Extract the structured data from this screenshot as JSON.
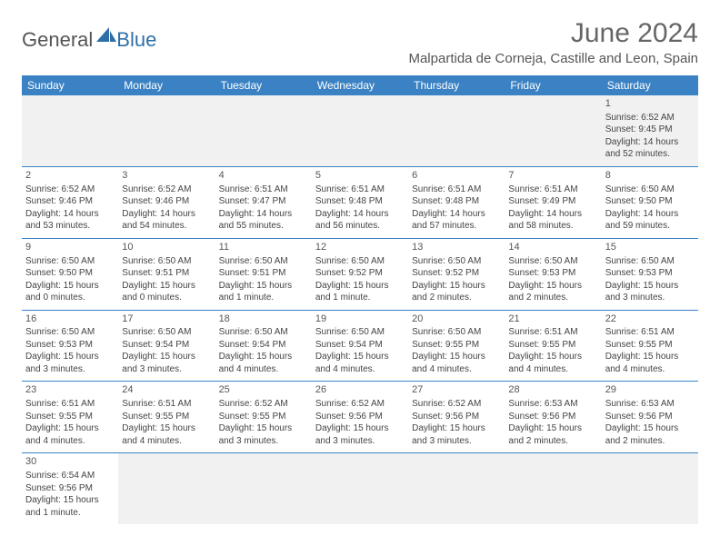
{
  "brand": {
    "part1": "General",
    "part2": "Blue"
  },
  "title": "June 2024",
  "location": "Malpartida de Corneja, Castille and Leon, Spain",
  "colors": {
    "header_bg": "#3b82c4",
    "header_text": "#ffffff",
    "rule": "#3b82c4",
    "text": "#444444",
    "brand_accent": "#2f6fa8"
  },
  "calendar": {
    "type": "table",
    "columns": [
      "Sunday",
      "Monday",
      "Tuesday",
      "Wednesday",
      "Thursday",
      "Friday",
      "Saturday"
    ],
    "weeks": [
      [
        null,
        null,
        null,
        null,
        null,
        null,
        {
          "day": "1",
          "sunrise": "Sunrise: 6:52 AM",
          "sunset": "Sunset: 9:45 PM",
          "daylight": "Daylight: 14 hours and 52 minutes."
        }
      ],
      [
        {
          "day": "2",
          "sunrise": "Sunrise: 6:52 AM",
          "sunset": "Sunset: 9:46 PM",
          "daylight": "Daylight: 14 hours and 53 minutes."
        },
        {
          "day": "3",
          "sunrise": "Sunrise: 6:52 AM",
          "sunset": "Sunset: 9:46 PM",
          "daylight": "Daylight: 14 hours and 54 minutes."
        },
        {
          "day": "4",
          "sunrise": "Sunrise: 6:51 AM",
          "sunset": "Sunset: 9:47 PM",
          "daylight": "Daylight: 14 hours and 55 minutes."
        },
        {
          "day": "5",
          "sunrise": "Sunrise: 6:51 AM",
          "sunset": "Sunset: 9:48 PM",
          "daylight": "Daylight: 14 hours and 56 minutes."
        },
        {
          "day": "6",
          "sunrise": "Sunrise: 6:51 AM",
          "sunset": "Sunset: 9:48 PM",
          "daylight": "Daylight: 14 hours and 57 minutes."
        },
        {
          "day": "7",
          "sunrise": "Sunrise: 6:51 AM",
          "sunset": "Sunset: 9:49 PM",
          "daylight": "Daylight: 14 hours and 58 minutes."
        },
        {
          "day": "8",
          "sunrise": "Sunrise: 6:50 AM",
          "sunset": "Sunset: 9:50 PM",
          "daylight": "Daylight: 14 hours and 59 minutes."
        }
      ],
      [
        {
          "day": "9",
          "sunrise": "Sunrise: 6:50 AM",
          "sunset": "Sunset: 9:50 PM",
          "daylight": "Daylight: 15 hours and 0 minutes."
        },
        {
          "day": "10",
          "sunrise": "Sunrise: 6:50 AM",
          "sunset": "Sunset: 9:51 PM",
          "daylight": "Daylight: 15 hours and 0 minutes."
        },
        {
          "day": "11",
          "sunrise": "Sunrise: 6:50 AM",
          "sunset": "Sunset: 9:51 PM",
          "daylight": "Daylight: 15 hours and 1 minute."
        },
        {
          "day": "12",
          "sunrise": "Sunrise: 6:50 AM",
          "sunset": "Sunset: 9:52 PM",
          "daylight": "Daylight: 15 hours and 1 minute."
        },
        {
          "day": "13",
          "sunrise": "Sunrise: 6:50 AM",
          "sunset": "Sunset: 9:52 PM",
          "daylight": "Daylight: 15 hours and 2 minutes."
        },
        {
          "day": "14",
          "sunrise": "Sunrise: 6:50 AM",
          "sunset": "Sunset: 9:53 PM",
          "daylight": "Daylight: 15 hours and 2 minutes."
        },
        {
          "day": "15",
          "sunrise": "Sunrise: 6:50 AM",
          "sunset": "Sunset: 9:53 PM",
          "daylight": "Daylight: 15 hours and 3 minutes."
        }
      ],
      [
        {
          "day": "16",
          "sunrise": "Sunrise: 6:50 AM",
          "sunset": "Sunset: 9:53 PM",
          "daylight": "Daylight: 15 hours and 3 minutes."
        },
        {
          "day": "17",
          "sunrise": "Sunrise: 6:50 AM",
          "sunset": "Sunset: 9:54 PM",
          "daylight": "Daylight: 15 hours and 3 minutes."
        },
        {
          "day": "18",
          "sunrise": "Sunrise: 6:50 AM",
          "sunset": "Sunset: 9:54 PM",
          "daylight": "Daylight: 15 hours and 4 minutes."
        },
        {
          "day": "19",
          "sunrise": "Sunrise: 6:50 AM",
          "sunset": "Sunset: 9:54 PM",
          "daylight": "Daylight: 15 hours and 4 minutes."
        },
        {
          "day": "20",
          "sunrise": "Sunrise: 6:50 AM",
          "sunset": "Sunset: 9:55 PM",
          "daylight": "Daylight: 15 hours and 4 minutes."
        },
        {
          "day": "21",
          "sunrise": "Sunrise: 6:51 AM",
          "sunset": "Sunset: 9:55 PM",
          "daylight": "Daylight: 15 hours and 4 minutes."
        },
        {
          "day": "22",
          "sunrise": "Sunrise: 6:51 AM",
          "sunset": "Sunset: 9:55 PM",
          "daylight": "Daylight: 15 hours and 4 minutes."
        }
      ],
      [
        {
          "day": "23",
          "sunrise": "Sunrise: 6:51 AM",
          "sunset": "Sunset: 9:55 PM",
          "daylight": "Daylight: 15 hours and 4 minutes."
        },
        {
          "day": "24",
          "sunrise": "Sunrise: 6:51 AM",
          "sunset": "Sunset: 9:55 PM",
          "daylight": "Daylight: 15 hours and 4 minutes."
        },
        {
          "day": "25",
          "sunrise": "Sunrise: 6:52 AM",
          "sunset": "Sunset: 9:55 PM",
          "daylight": "Daylight: 15 hours and 3 minutes."
        },
        {
          "day": "26",
          "sunrise": "Sunrise: 6:52 AM",
          "sunset": "Sunset: 9:56 PM",
          "daylight": "Daylight: 15 hours and 3 minutes."
        },
        {
          "day": "27",
          "sunrise": "Sunrise: 6:52 AM",
          "sunset": "Sunset: 9:56 PM",
          "daylight": "Daylight: 15 hours and 3 minutes."
        },
        {
          "day": "28",
          "sunrise": "Sunrise: 6:53 AM",
          "sunset": "Sunset: 9:56 PM",
          "daylight": "Daylight: 15 hours and 2 minutes."
        },
        {
          "day": "29",
          "sunrise": "Sunrise: 6:53 AM",
          "sunset": "Sunset: 9:56 PM",
          "daylight": "Daylight: 15 hours and 2 minutes."
        }
      ],
      [
        {
          "day": "30",
          "sunrise": "Sunrise: 6:54 AM",
          "sunset": "Sunset: 9:56 PM",
          "daylight": "Daylight: 15 hours and 1 minute."
        },
        null,
        null,
        null,
        null,
        null,
        null
      ]
    ]
  }
}
